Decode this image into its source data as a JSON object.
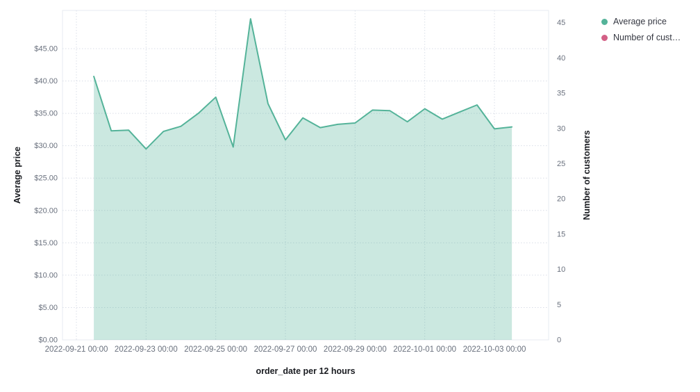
{
  "page": {
    "background": "#ffffff"
  },
  "chart_data": {
    "type": "area",
    "title": "",
    "grid": true,
    "x_axis": {
      "title": "order_date per 12 hours",
      "tick_labels": [
        "2022-09-21 00:00",
        "2022-09-23 00:00",
        "2022-09-25 00:00",
        "2022-09-27 00:00",
        "2022-09-29 00:00",
        "2022-10-01 00:00",
        "2022-10-03 00:00"
      ]
    },
    "y_axis_left": {
      "title": "Average price",
      "range": [
        0,
        50
      ],
      "tick_labels": [
        "$0.00",
        "$5.00",
        "$10.00",
        "$15.00",
        "$20.00",
        "$25.00",
        "$30.00",
        "$35.00",
        "$40.00",
        "$45.00"
      ]
    },
    "y_axis_right": {
      "title": "Number of customers",
      "range": [
        0,
        46
      ],
      "tick_labels": [
        "0",
        "5",
        "10",
        "15",
        "20",
        "25",
        "30",
        "35",
        "40",
        "45"
      ]
    },
    "series": [
      {
        "name": "Average price",
        "type": "area",
        "color": "#54B399",
        "fill_opacity": 0.3,
        "x": [
          "2022-09-21 12:00",
          "2022-09-22 00:00",
          "2022-09-22 12:00",
          "2022-09-23 00:00",
          "2022-09-23 12:00",
          "2022-09-24 00:00",
          "2022-09-24 12:00",
          "2022-09-25 00:00",
          "2022-09-25 12:00",
          "2022-09-26 00:00",
          "2022-09-26 12:00",
          "2022-09-27 00:00",
          "2022-09-27 12:00",
          "2022-09-28 00:00",
          "2022-09-28 12:00",
          "2022-09-29 00:00",
          "2022-09-29 12:00",
          "2022-09-30 00:00",
          "2022-09-30 12:00",
          "2022-10-01 00:00",
          "2022-10-01 12:00",
          "2022-10-02 00:00",
          "2022-10-02 12:00",
          "2022-10-03 00:00",
          "2022-10-03 12:00"
        ],
        "values": [
          40.7,
          32.3,
          32.4,
          29.5,
          32.2,
          33.0,
          35.0,
          37.5,
          29.8,
          49.6,
          36.5,
          30.9,
          34.3,
          32.8,
          33.3,
          33.5,
          35.5,
          35.4,
          33.7,
          35.7,
          34.1,
          35.2,
          36.3,
          32.6,
          32.9
        ]
      }
    ],
    "legend": {
      "position": "top-right",
      "items": [
        {
          "label": "Average price",
          "color": "#54B399"
        },
        {
          "label": "Number of cust…",
          "color": "#D36086"
        }
      ]
    }
  }
}
